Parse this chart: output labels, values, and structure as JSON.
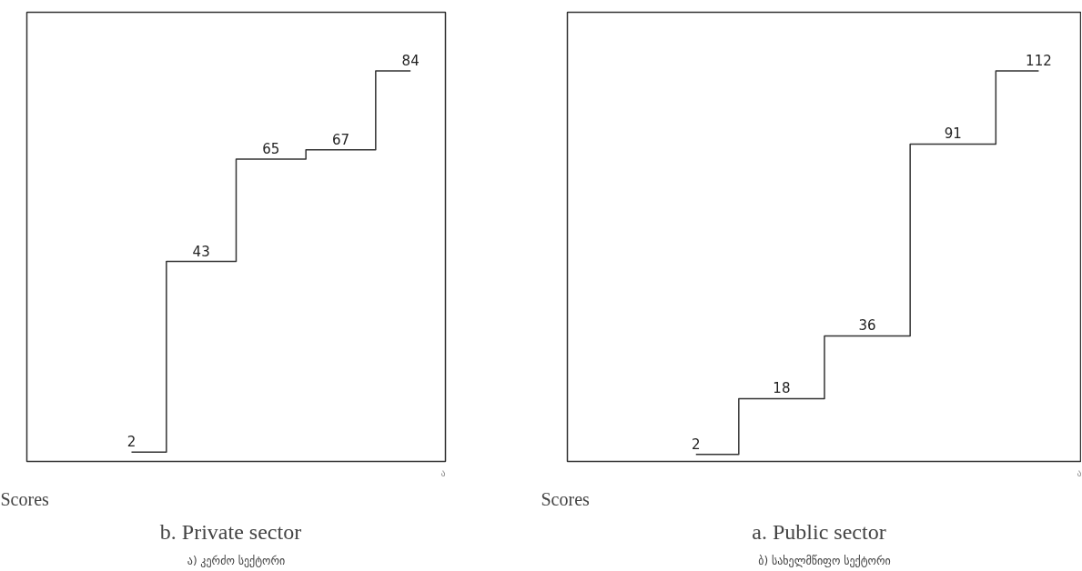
{
  "chart_data": [
    {
      "type": "step",
      "title": "b.   Private sector",
      "subtitle": "ა) კერძო სექტორი",
      "annotations": [
        "Scores",
        "ა"
      ],
      "categories": [
        null,
        null,
        null,
        null,
        null
      ],
      "values": [
        2,
        43,
        65,
        67,
        84
      ],
      "color": "#333333",
      "data_labels": true
    },
    {
      "type": "step",
      "title": "a.   Public sector",
      "subtitle": "ბ) სახელმწიფო სექტორი",
      "annotations": [
        "Scores",
        "ა"
      ],
      "categories": [
        null,
        null,
        null,
        null,
        null
      ],
      "values": [
        2,
        18,
        36,
        91,
        112
      ],
      "color": "#333333",
      "data_labels": true
    }
  ]
}
